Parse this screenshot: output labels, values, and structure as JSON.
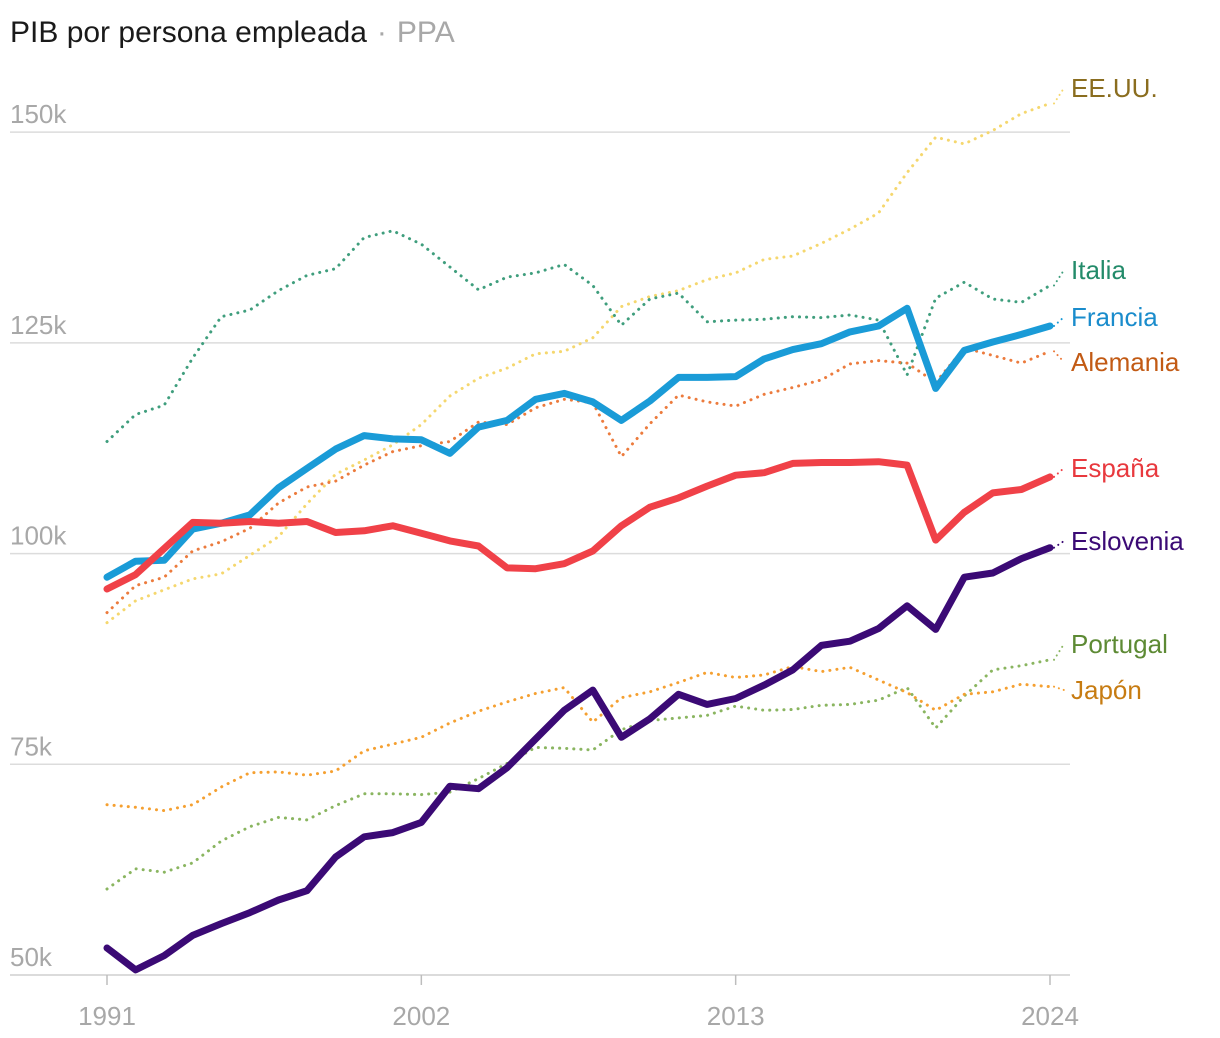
{
  "chart_data": {
    "type": "line",
    "title": "PIB por persona empleada",
    "subtitle_separator": "·",
    "subtitle": "PPA",
    "xlabel": "",
    "ylabel": "",
    "x_range": [
      1991,
      2024
    ],
    "ylim": [
      50000,
      155000
    ],
    "y_ticks": [
      {
        "value": 50000,
        "label": "50k"
      },
      {
        "value": 75000,
        "label": "75k"
      },
      {
        "value": 100000,
        "label": "100k"
      },
      {
        "value": 125000,
        "label": "125k"
      },
      {
        "value": 150000,
        "label": "150k"
      }
    ],
    "x_ticks": [
      {
        "value": 1991,
        "label": "1991"
      },
      {
        "value": 2002,
        "label": "2002"
      },
      {
        "value": 2013,
        "label": "2013"
      },
      {
        "value": 2024,
        "label": "2024"
      }
    ],
    "grid": true,
    "legend": "direct labels at right",
    "series": [
      {
        "name": "EE.UU.",
        "color": "#f5d76e",
        "label_color": "#8a6d1f",
        "style": "dotted",
        "width": 3,
        "values": [
          91.8,
          94.4,
          95.7,
          97.0,
          97.6,
          99.8,
          102.0,
          105.9,
          109.4,
          111.1,
          112.9,
          115.3,
          118.7,
          120.8,
          122.0,
          123.7,
          124.0,
          125.6,
          129.3,
          130.5,
          131.2,
          132.5,
          133.3,
          134.9,
          135.3,
          136.8,
          138.5,
          140.4,
          145.2,
          149.4,
          148.6,
          150.2,
          152.2,
          153.4
        ]
      },
      {
        "name": "Italia",
        "color": "#3f9e7d",
        "label_color": "#238b6a",
        "style": "dotted",
        "width": 3,
        "values": [
          113.3,
          116.5,
          117.6,
          123.2,
          128.1,
          128.9,
          131.2,
          133.0,
          133.8,
          137.5,
          138.3,
          136.7,
          134.0,
          131.3,
          132.8,
          133.3,
          134.3,
          131.8,
          127.1,
          130.2,
          130.9,
          127.5,
          127.7,
          127.8,
          128.1,
          128.0,
          128.3,
          127.7,
          121.2,
          130.3,
          132.2,
          130.2,
          129.8,
          131.8
        ]
      },
      {
        "name": "Alemania",
        "color": "#ec7b3d",
        "label_color": "#c25a14",
        "style": "dotted",
        "width": 3,
        "values": [
          93.0,
          96.2,
          97.2,
          100.3,
          101.4,
          103.0,
          106.0,
          107.9,
          108.6,
          110.5,
          112.1,
          112.8,
          113.3,
          115.6,
          115.3,
          117.3,
          118.3,
          117.9,
          111.5,
          115.4,
          118.8,
          118.0,
          117.5,
          118.9,
          119.7,
          120.6,
          122.5,
          122.9,
          122.6,
          120.3,
          124.4,
          123.5,
          122.6,
          124.0
        ]
      },
      {
        "name": "Francia",
        "color": "#1a9bd7",
        "label_color": "#1a8ccc",
        "style": "solid",
        "width": 7,
        "values": [
          97.2,
          99.1,
          99.2,
          102.9,
          103.6,
          104.6,
          107.8,
          110.1,
          112.4,
          114.0,
          113.6,
          113.5,
          111.9,
          115.0,
          115.8,
          118.3,
          119.0,
          118.0,
          115.8,
          118.1,
          120.9,
          120.9,
          121.0,
          123.1,
          124.2,
          124.9,
          126.3,
          127.0,
          129.1,
          119.6,
          124.1,
          125.1,
          126.0,
          127.0
        ]
      },
      {
        "name": "España",
        "color": "#f04148",
        "label_color": "#e8393e",
        "style": "solid",
        "width": 7,
        "values": [
          95.8,
          97.5,
          100.6,
          103.7,
          103.6,
          103.8,
          103.6,
          103.8,
          102.5,
          102.7,
          103.3,
          102.4,
          101.5,
          100.9,
          98.3,
          98.2,
          98.8,
          100.3,
          103.3,
          105.5,
          106.6,
          108.0,
          109.3,
          109.6,
          110.7,
          110.8,
          110.8,
          110.9,
          110.5,
          101.6,
          104.9,
          107.2,
          107.6,
          109.1
        ]
      },
      {
        "name": "Eslovenia",
        "color": "#3b0a75",
        "label_color": "#3b0a75",
        "style": "solid",
        "width": 7,
        "values": [
          53.2,
          50.6,
          52.3,
          54.7,
          56.1,
          57.4,
          58.9,
          60.0,
          64.0,
          66.4,
          66.9,
          68.1,
          72.4,
          72.1,
          74.6,
          78.0,
          81.4,
          83.8,
          78.2,
          80.4,
          83.3,
          82.1,
          82.8,
          84.4,
          86.2,
          89.1,
          89.6,
          91.1,
          93.8,
          91.0,
          97.2,
          97.7,
          99.4,
          100.7
        ]
      },
      {
        "name": "Portugal",
        "color": "#8ab560",
        "label_color": "#5d8a34",
        "style": "dotted",
        "width": 3,
        "values": [
          60.2,
          62.6,
          62.2,
          63.3,
          65.9,
          67.6,
          68.7,
          68.4,
          70.1,
          71.5,
          71.5,
          71.4,
          71.7,
          73.3,
          75.1,
          77.0,
          76.9,
          76.7,
          79.1,
          80.2,
          80.5,
          80.8,
          81.9,
          81.4,
          81.5,
          82.0,
          82.1,
          82.6,
          84.1,
          79.3,
          83.1,
          86.2,
          86.7,
          87.4
        ]
      },
      {
        "name": "Japón",
        "color": "#f5a031",
        "label_color": "#c77c12",
        "style": "dotted",
        "width": 3,
        "values": [
          70.2,
          69.9,
          69.5,
          70.2,
          72.3,
          74.0,
          74.1,
          73.7,
          74.2,
          76.6,
          77.4,
          78.2,
          79.9,
          81.3,
          82.4,
          83.4,
          84.1,
          80.0,
          82.9,
          83.6,
          84.7,
          85.9,
          85.3,
          85.6,
          86.6,
          86.0,
          86.5,
          85.0,
          83.5,
          81.4,
          83.3,
          83.6,
          84.5,
          84.2
        ]
      }
    ]
  }
}
